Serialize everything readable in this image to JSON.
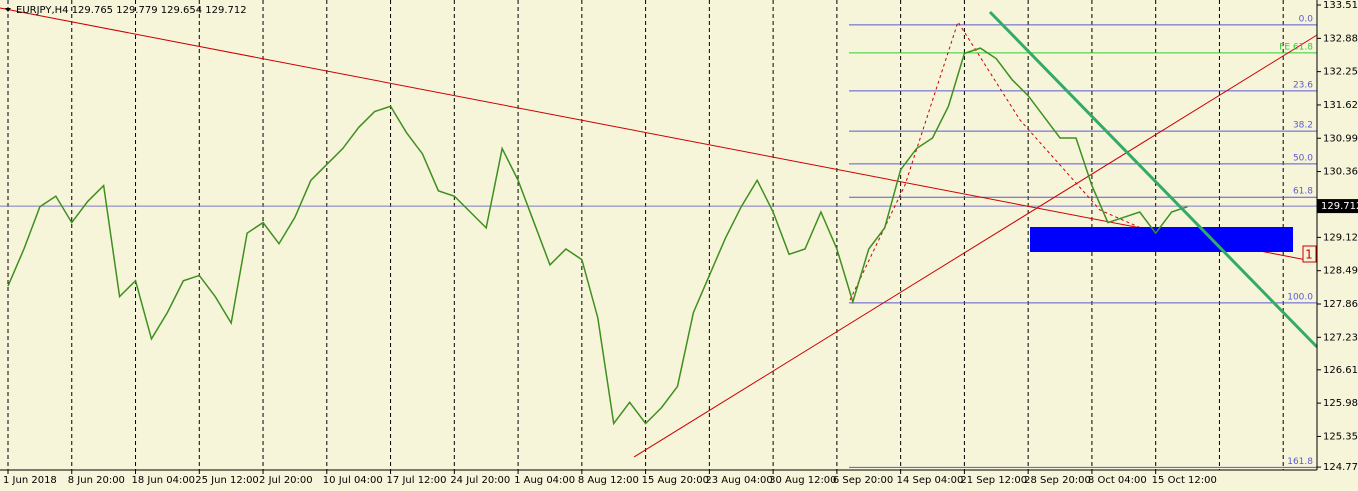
{
  "chart_data": {
    "type": "line",
    "title": "EURJPY,H4  129.765 129.779 129.654 129.712",
    "categories": [
      "1 Jun 2018",
      null,
      null,
      null,
      "8 Jun 20:00",
      null,
      null,
      null,
      "18 Jun 04:00",
      null,
      null,
      null,
      "25 Jun 12:00",
      null,
      null,
      null,
      "2 Jul 20:00",
      null,
      null,
      null,
      "10 Jul 04:00",
      null,
      null,
      null,
      "17 Jul 12:00",
      null,
      null,
      null,
      "24 Jul 20:00",
      null,
      null,
      null,
      "1 Aug 04:00",
      null,
      null,
      null,
      "8 Aug 12:00",
      null,
      null,
      null,
      "15 Aug 20:00",
      null,
      null,
      null,
      "23 Aug 04:00",
      null,
      null,
      null,
      "30 Aug 12:00",
      null,
      null,
      null,
      "6 Sep 20:00",
      null,
      null,
      null,
      "14 Sep 04:00",
      null,
      null,
      null,
      "21 Sep 12:00",
      null,
      null,
      null,
      "28 Sep 20:00",
      null,
      null,
      null,
      "8 Oct 04:00",
      null,
      null,
      null,
      "15 Oct 12:00",
      null,
      null,
      null,
      null,
      null,
      null,
      null,
      null,
      null
    ],
    "series": [
      {
        "name": "EURJPY",
        "color": "#3f8f1f",
        "values": [
          128.2,
          128.9,
          129.7,
          129.9,
          129.4,
          129.8,
          130.1,
          128.0,
          128.3,
          127.2,
          127.7,
          128.3,
          128.4,
          128.0,
          127.5,
          129.2,
          129.4,
          129.0,
          129.5,
          130.2,
          130.5,
          130.8,
          131.2,
          131.5,
          131.6,
          131.1,
          130.7,
          130.0,
          129.9,
          129.6,
          129.3,
          130.8,
          130.2,
          129.4,
          128.6,
          128.9,
          128.7,
          127.6,
          125.6,
          126.0,
          125.6,
          125.9,
          126.3,
          127.7,
          128.4,
          129.1,
          129.7,
          130.2,
          129.6,
          128.8,
          128.9,
          129.6,
          128.9,
          127.9,
          128.9,
          129.3,
          130.4,
          130.8,
          131.0,
          131.6,
          132.6,
          132.7,
          132.5,
          132.1,
          131.8,
          131.4,
          131.0,
          131.0,
          130.1,
          129.4,
          129.5,
          129.6,
          129.2,
          129.6,
          129.7,
          null,
          null,
          null,
          null,
          null,
          null,
          null
        ]
      }
    ],
    "ylim": [
      124.72,
      133.61
    ],
    "yticks": [
      133.515,
      132.885,
      132.255,
      131.625,
      130.995,
      130.365,
      {
        "value": 129.12,
        "label": "129.120"
      },
      {
        "value": 128.49,
        "label": "128.490"
      },
      {
        "value": 127.86,
        "label": "127.860"
      },
      {
        "value": 127.23,
        "label": "127.230"
      },
      126.615,
      125.985,
      125.355,
      124.775
    ],
    "last_price": 129.712,
    "fib_levels": [
      {
        "label": "0.0",
        "value": 133.14,
        "color": "#5a5ad0"
      },
      {
        "label": "FE 61.8",
        "value": 132.61,
        "color": "#33cc33"
      },
      {
        "label": "23.6",
        "value": 131.89,
        "color": "#5a5ad0"
      },
      {
        "label": "38.2",
        "value": 131.13,
        "color": "#5a5ad0"
      },
      {
        "label": "50.0",
        "value": 130.51,
        "color": "#5a5ad0"
      },
      {
        "label": "61.8",
        "value": 129.88,
        "color": "#5a5ad0"
      },
      {
        "label": "100.0",
        "value": 127.88,
        "color": "#5a5ad0"
      },
      {
        "label": "161.8",
        "value": 124.77,
        "color": "#5a5ad0"
      }
    ],
    "marker_label": "1",
    "grid": true
  }
}
